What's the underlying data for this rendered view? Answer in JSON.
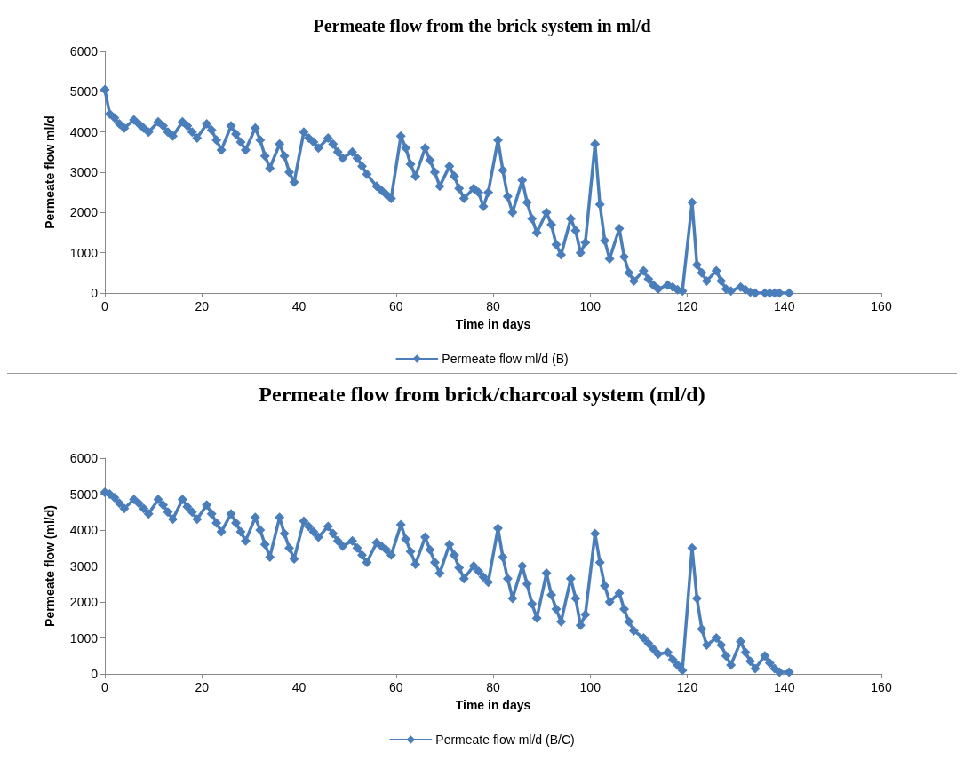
{
  "chart_data": [
    {
      "type": "line",
      "title": "Permeate flow from the brick system in ml/d",
      "xlabel": "Time in days",
      "ylabel": "Permeate flow ml/d",
      "xlim": [
        0,
        160
      ],
      "xticks": [
        0,
        20,
        40,
        60,
        80,
        100,
        120,
        140,
        160
      ],
      "ylim": [
        0,
        6000
      ],
      "yticks": [
        0,
        1000,
        2000,
        3000,
        4000,
        5000,
        6000
      ],
      "grid": false,
      "legend": "bottom",
      "marker": "diamond",
      "x": [
        0,
        1,
        2,
        3,
        4,
        6,
        7,
        8,
        9,
        11,
        12,
        13,
        14,
        16,
        17,
        18,
        19,
        21,
        22,
        23,
        24,
        26,
        27,
        28,
        29,
        31,
        32,
        33,
        34,
        36,
        37,
        38,
        39,
        41,
        42,
        43,
        44,
        46,
        47,
        48,
        49,
        51,
        52,
        53,
        54,
        56,
        57,
        58,
        59,
        61,
        62,
        63,
        64,
        66,
        67,
        68,
        69,
        71,
        72,
        73,
        74,
        76,
        77,
        78,
        79,
        81,
        82,
        83,
        84,
        86,
        87,
        88,
        89,
        91,
        92,
        93,
        94,
        96,
        97,
        98,
        99,
        101,
        102,
        103,
        104,
        106,
        107,
        108,
        109,
        111,
        112,
        113,
        114,
        116,
        117,
        118,
        119,
        121,
        122,
        123,
        124,
        126,
        127,
        128,
        129,
        131,
        132,
        133,
        134,
        136,
        137,
        138,
        139,
        141
      ],
      "series": [
        {
          "name": "Permeate flow ml/d (B)",
          "color": "#4a7ebb",
          "values": [
            5050,
            4450,
            4350,
            4200,
            4100,
            4300,
            4200,
            4100,
            4000,
            4250,
            4150,
            4000,
            3900,
            4250,
            4150,
            4000,
            3850,
            4200,
            4050,
            3800,
            3550,
            4150,
            3950,
            3750,
            3550,
            4100,
            3800,
            3400,
            3100,
            3700,
            3400,
            3000,
            2750,
            4000,
            3850,
            3750,
            3600,
            3850,
            3700,
            3500,
            3350,
            3500,
            3350,
            3150,
            2950,
            2650,
            2550,
            2450,
            2350,
            3900,
            3600,
            3200,
            2900,
            3600,
            3300,
            3000,
            2650,
            3150,
            2900,
            2600,
            2350,
            2600,
            2500,
            2150,
            2500,
            3800,
            3050,
            2400,
            2000,
            2800,
            2250,
            1850,
            1500,
            2000,
            1700,
            1200,
            950,
            1850,
            1550,
            1000,
            1250,
            3700,
            2200,
            1300,
            850,
            1600,
            900,
            500,
            300,
            550,
            350,
            200,
            100,
            200,
            150,
            80,
            50,
            2250,
            700,
            500,
            300,
            550,
            300,
            100,
            50,
            150,
            80,
            20,
            0,
            0,
            0,
            0,
            0,
            0
          ]
        }
      ]
    },
    {
      "type": "line",
      "title": "Permeate flow from brick/charcoal system (ml/d)",
      "xlabel": "Time in days",
      "ylabel": "Permeate flow (ml/d)",
      "xlim": [
        0,
        160
      ],
      "xticks": [
        0,
        20,
        40,
        60,
        80,
        100,
        120,
        140,
        160
      ],
      "ylim": [
        0,
        6000
      ],
      "yticks": [
        0,
        1000,
        2000,
        3000,
        4000,
        5000,
        6000
      ],
      "grid": false,
      "legend": "bottom",
      "marker": "diamond",
      "x": [
        0,
        1,
        2,
        3,
        4,
        6,
        7,
        8,
        9,
        11,
        12,
        13,
        14,
        16,
        17,
        18,
        19,
        21,
        22,
        23,
        24,
        26,
        27,
        28,
        29,
        31,
        32,
        33,
        34,
        36,
        37,
        38,
        39,
        41,
        42,
        43,
        44,
        46,
        47,
        48,
        49,
        51,
        52,
        53,
        54,
        56,
        57,
        58,
        59,
        61,
        62,
        63,
        64,
        66,
        67,
        68,
        69,
        71,
        72,
        73,
        74,
        76,
        77,
        78,
        79,
        81,
        82,
        83,
        84,
        86,
        87,
        88,
        89,
        91,
        92,
        93,
        94,
        96,
        97,
        98,
        99,
        101,
        102,
        103,
        104,
        106,
        107,
        108,
        109,
        111,
        112,
        113,
        114,
        116,
        117,
        118,
        119,
        121,
        122,
        123,
        124,
        126,
        127,
        128,
        129,
        131,
        132,
        133,
        134,
        136,
        137,
        138,
        139,
        141
      ],
      "series": [
        {
          "name": "Permeate flow ml/d (B/C)",
          "color": "#4a7ebb",
          "values": [
            5050,
            5000,
            4900,
            4750,
            4600,
            4850,
            4750,
            4600,
            4450,
            4850,
            4700,
            4500,
            4300,
            4850,
            4650,
            4500,
            4300,
            4700,
            4450,
            4200,
            3950,
            4450,
            4200,
            3950,
            3700,
            4350,
            4000,
            3600,
            3250,
            4350,
            3900,
            3500,
            3200,
            4250,
            4100,
            3950,
            3800,
            4100,
            3900,
            3700,
            3550,
            3700,
            3500,
            3300,
            3100,
            3650,
            3550,
            3450,
            3300,
            4150,
            3750,
            3400,
            3050,
            3800,
            3450,
            3100,
            2800,
            3600,
            3300,
            2950,
            2650,
            3000,
            2850,
            2700,
            2550,
            4050,
            3250,
            2650,
            2100,
            3000,
            2500,
            1950,
            1550,
            2800,
            2200,
            1800,
            1450,
            2650,
            2100,
            1350,
            1650,
            3900,
            3100,
            2450,
            2000,
            2250,
            1800,
            1450,
            1200,
            1000,
            850,
            700,
            550,
            600,
            400,
            250,
            100,
            3500,
            2100,
            1250,
            800,
            1000,
            800,
            500,
            250,
            900,
            600,
            350,
            150,
            500,
            300,
            150,
            50,
            50
          ]
        }
      ]
    }
  ]
}
